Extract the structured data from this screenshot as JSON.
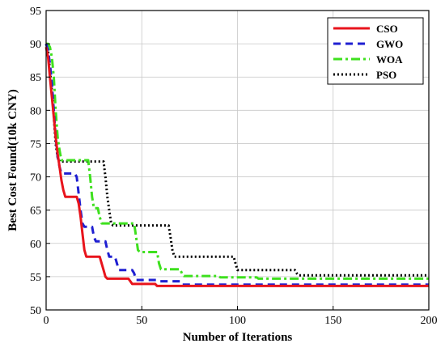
{
  "chart_data": {
    "type": "line",
    "title": "",
    "xlabel": "Number of Iterations",
    "ylabel": "Best Cost Found(10k CNY)",
    "xlim": [
      0,
      200
    ],
    "ylim": [
      50,
      95
    ],
    "xticks": [
      0,
      50,
      100,
      150,
      200
    ],
    "yticks": [
      50,
      55,
      60,
      65,
      70,
      75,
      80,
      85,
      90,
      95
    ],
    "grid": true,
    "legend": "top-right",
    "series": [
      {
        "name": "CSO",
        "color": "#e8141c",
        "style": "solid",
        "points": [
          [
            0,
            89.5
          ],
          [
            1,
            88
          ],
          [
            2,
            85
          ],
          [
            3,
            82
          ],
          [
            4,
            79
          ],
          [
            5,
            76
          ],
          [
            6,
            73.5
          ],
          [
            7,
            71.5
          ],
          [
            8,
            69.5
          ],
          [
            9,
            68
          ],
          [
            10,
            67
          ],
          [
            16,
            67
          ],
          [
            17,
            66
          ],
          [
            18,
            64
          ],
          [
            19,
            61.5
          ],
          [
            20,
            59
          ],
          [
            21,
            58
          ],
          [
            28,
            58
          ],
          [
            29,
            57
          ],
          [
            30,
            56
          ],
          [
            31,
            55
          ],
          [
            32,
            54.7
          ],
          [
            43,
            54.7
          ],
          [
            44,
            54.3
          ],
          [
            45,
            53.9
          ],
          [
            57,
            53.9
          ],
          [
            58,
            53.6
          ],
          [
            200,
            53.6
          ]
        ]
      },
      {
        "name": "GWO",
        "color": "#1f1fd1",
        "style": "dashed",
        "points": [
          [
            0,
            90
          ],
          [
            1,
            89
          ],
          [
            2,
            87
          ],
          [
            3,
            84
          ],
          [
            4,
            80
          ],
          [
            5,
            76
          ],
          [
            6,
            73
          ],
          [
            7,
            71.5
          ],
          [
            8,
            70.5
          ],
          [
            15,
            70.5
          ],
          [
            16,
            70
          ],
          [
            17,
            67.5
          ],
          [
            18,
            65
          ],
          [
            19,
            63
          ],
          [
            20,
            62.5
          ],
          [
            24,
            62.5
          ],
          [
            25,
            61
          ],
          [
            26,
            60.3
          ],
          [
            31,
            60.3
          ],
          [
            32,
            59
          ],
          [
            33,
            58
          ],
          [
            36,
            58
          ],
          [
            37,
            57
          ],
          [
            38,
            56
          ],
          [
            45,
            56
          ],
          [
            46,
            55.5
          ],
          [
            47,
            54.5
          ],
          [
            58,
            54.5
          ],
          [
            59,
            54.3
          ],
          [
            70,
            54.3
          ],
          [
            71,
            53.8
          ],
          [
            200,
            53.8
          ]
        ]
      },
      {
        "name": "WOA",
        "color": "#3ee01e",
        "style": "dashdot",
        "points": [
          [
            0,
            90
          ],
          [
            1,
            90
          ],
          [
            2,
            89.5
          ],
          [
            3,
            88
          ],
          [
            4,
            85
          ],
          [
            5,
            80
          ],
          [
            6,
            76
          ],
          [
            7,
            74
          ],
          [
            8,
            72.5
          ],
          [
            22,
            72.5
          ],
          [
            23,
            70
          ],
          [
            24,
            67
          ],
          [
            25,
            65.3
          ],
          [
            27,
            65.3
          ],
          [
            28,
            64
          ],
          [
            29,
            63
          ],
          [
            46,
            63
          ],
          [
            47,
            61
          ],
          [
            48,
            59
          ],
          [
            49,
            58.7
          ],
          [
            58,
            58.7
          ],
          [
            59,
            57
          ],
          [
            60,
            56.1
          ],
          [
            70,
            56.1
          ],
          [
            71,
            55.5
          ],
          [
            72,
            55.1
          ],
          [
            90,
            55.1
          ],
          [
            91,
            54.9
          ],
          [
            110,
            54.9
          ],
          [
            111,
            54.7
          ],
          [
            200,
            54.7
          ]
        ]
      },
      {
        "name": "PSO",
        "color": "#000000",
        "style": "dotted",
        "points": [
          [
            0,
            90
          ],
          [
            1,
            89
          ],
          [
            2,
            86
          ],
          [
            3,
            83
          ],
          [
            4,
            79
          ],
          [
            5,
            75
          ],
          [
            6,
            73
          ],
          [
            7,
            72.3
          ],
          [
            30,
            72.3
          ],
          [
            31,
            70
          ],
          [
            32,
            67
          ],
          [
            33,
            65
          ],
          [
            34,
            63
          ],
          [
            35,
            62.7
          ],
          [
            64,
            62.7
          ],
          [
            65,
            61
          ],
          [
            66,
            59
          ],
          [
            67,
            58
          ],
          [
            98,
            58
          ],
          [
            99,
            57
          ],
          [
            100,
            56
          ],
          [
            130,
            56
          ],
          [
            131,
            55.5
          ],
          [
            132,
            55.2
          ],
          [
            200,
            55.2
          ]
        ]
      }
    ]
  }
}
